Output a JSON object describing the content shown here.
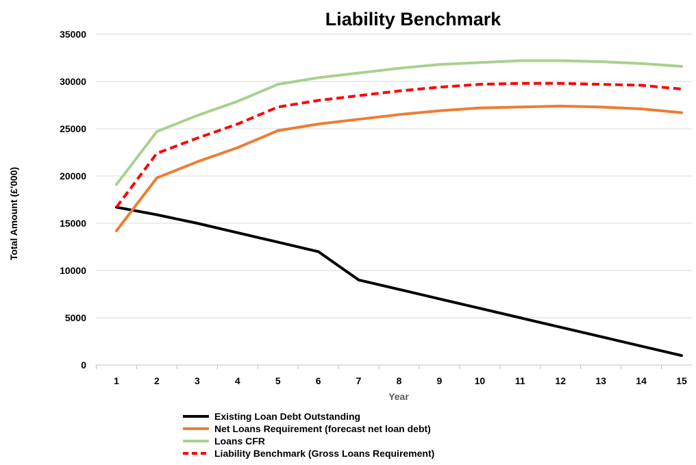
{
  "chart_data": {
    "type": "line",
    "title": "Liability Benchmark",
    "xlabel": "Year",
    "ylabel": "Total Amount (£'000)",
    "x": [
      1,
      2,
      3,
      4,
      5,
      6,
      7,
      8,
      9,
      10,
      11,
      12,
      13,
      14,
      15
    ],
    "ylim": [
      0,
      35000
    ],
    "yticks": [
      0,
      5000,
      10000,
      15000,
      20000,
      25000,
      30000,
      35000
    ],
    "grid": true,
    "legend_position": "bottom",
    "series": [
      {
        "name": "Existing Loan Debt Outstanding",
        "color": "#000000",
        "dashed": false,
        "values": [
          16700,
          15900,
          15000,
          14000,
          13000,
          12000,
          9000,
          8000,
          7000,
          6000,
          5000,
          4000,
          3000,
          2000,
          1000
        ]
      },
      {
        "name": "Net Loans Requirement (forecast net loan debt)",
        "color": "#ed7d31",
        "dashed": false,
        "values": [
          14200,
          19800,
          21500,
          23000,
          24800,
          25500,
          26000,
          26500,
          26900,
          27200,
          27300,
          27400,
          27300,
          27100,
          26700
        ]
      },
      {
        "name": "Loans CFR",
        "color": "#a9d18e",
        "dashed": false,
        "values": [
          19100,
          24700,
          26400,
          27900,
          29700,
          30400,
          30900,
          31400,
          31800,
          32000,
          32200,
          32200,
          32100,
          31900,
          31600
        ]
      },
      {
        "name": "Liability Benchmark (Gross Loans Requirement)",
        "color": "#ff0000",
        "dashed": true,
        "values": [
          16700,
          22400,
          24000,
          25500,
          27300,
          28000,
          28500,
          29000,
          29400,
          29700,
          29800,
          29800,
          29700,
          29600,
          29200
        ]
      }
    ]
  }
}
